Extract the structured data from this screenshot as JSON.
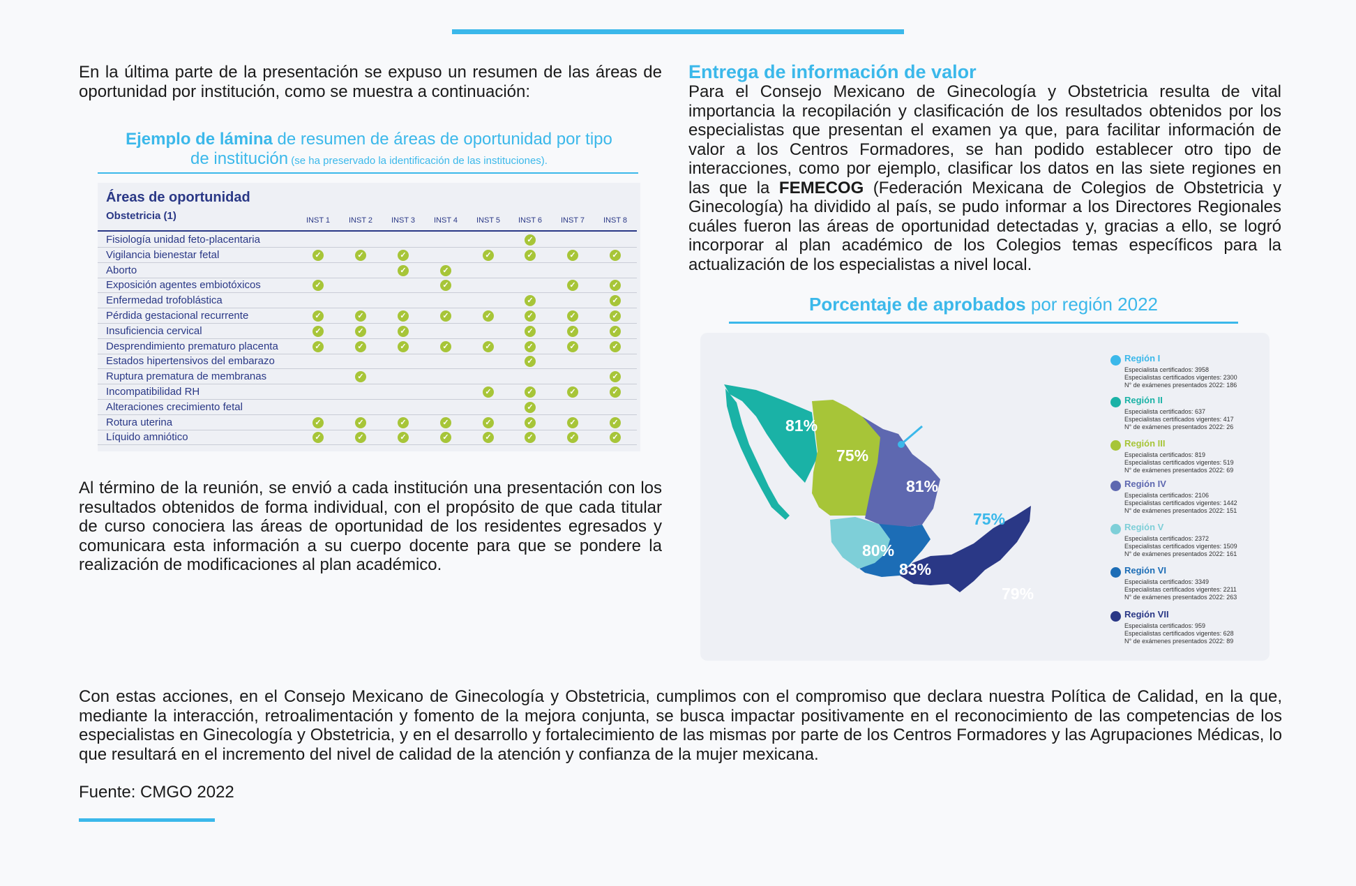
{
  "intro": {
    "text": "En la última parte de la presentación se expuso un resumen de las áreas de oportunidad por institución, como se muestra a continuación:"
  },
  "table_caption": {
    "bold": "Ejemplo de lámina",
    "rest_1": " de resumen de áreas de oportunidad por tipo",
    "line2": "de institución",
    "small": " (se ha preservado la identificación de las instituciones)."
  },
  "table": {
    "title": "Áreas de oportunidad",
    "subtitle": "Obstetricia (1)",
    "columns": [
      "INST 1",
      "INST 2",
      "INST 3",
      "INST 4",
      "INST 5",
      "INST 6",
      "INST 7",
      "INST 8"
    ],
    "rows": [
      {
        "label": "Fisiología unidad feto-placentaria",
        "marks": [
          0,
          0,
          0,
          0,
          0,
          1,
          0,
          0
        ]
      },
      {
        "label": "Vigilancia bienestar fetal",
        "marks": [
          1,
          1,
          1,
          0,
          1,
          1,
          1,
          1
        ]
      },
      {
        "label": "Aborto",
        "marks": [
          0,
          0,
          1,
          1,
          0,
          0,
          0,
          0
        ]
      },
      {
        "label": "Exposición agentes embiotóxicos",
        "marks": [
          1,
          0,
          0,
          1,
          0,
          0,
          1,
          1
        ]
      },
      {
        "label": "Enfermedad trofoblástica",
        "marks": [
          0,
          0,
          0,
          0,
          0,
          1,
          0,
          1
        ]
      },
      {
        "label": "Pérdida gestacional recurrente",
        "marks": [
          1,
          1,
          1,
          1,
          1,
          1,
          1,
          1
        ]
      },
      {
        "label": "Insuficiencia cervical",
        "marks": [
          1,
          1,
          1,
          0,
          0,
          1,
          1,
          1
        ]
      },
      {
        "label": "Desprendimiento prematuro placenta",
        "marks": [
          1,
          1,
          1,
          1,
          1,
          1,
          1,
          1
        ]
      },
      {
        "label": "Estados hipertensivos del embarazo",
        "marks": [
          0,
          0,
          0,
          0,
          0,
          1,
          0,
          0
        ]
      },
      {
        "label": "Ruptura prematura de membranas",
        "marks": [
          0,
          1,
          0,
          0,
          0,
          0,
          0,
          1
        ]
      },
      {
        "label": "Incompatibilidad RH",
        "marks": [
          0,
          0,
          0,
          0,
          1,
          1,
          1,
          1
        ]
      },
      {
        "label": "Alteraciones crecimiento fetal",
        "marks": [
          0,
          0,
          0,
          0,
          0,
          1,
          0,
          0
        ]
      },
      {
        "label": "Rotura uterina",
        "marks": [
          1,
          1,
          1,
          1,
          1,
          1,
          1,
          1
        ]
      },
      {
        "label": "Líquido amniótico",
        "marks": [
          1,
          1,
          1,
          1,
          1,
          1,
          1,
          1
        ]
      }
    ]
  },
  "closing_left": {
    "text": "Al término de la reunión, se envió a cada institución una presentación con los resultados obtenidos de forma individual, con el propósito de que cada titular de curso conociera las áreas de oportunidad de los residentes egresados y comunicara esta información a su cuerpo docente para que se pondere la realización de modificaciones al plan académico."
  },
  "section": {
    "heading": "Entrega de información de valor",
    "text_before": "Para el Consejo Mexicano de Ginecología y Obstetricia resulta de vital importancia la recopilación y clasificación de los resultados obtenidos por los especialistas que presentan el examen ya que, para facilitar información de valor a los Centros Formadores, se han podido establecer otro tipo de interacciones, como por ejemplo, clasificar los datos en las siete regiones en las que la ",
    "text_bold": "FEMECOG",
    "text_after": " (Federación Mexicana de Colegios de Obstetricia y Ginecología) ha dividido al país, se pudo informar a los Directores Regionales  cuáles fueron las áreas de oportunidad detectadas y, gracias a ello, se logró incorporar al plan académico de los Colegios temas específicos para la actualización de los especialistas a nivel local."
  },
  "map_caption": {
    "bold": "Porcentaje de aprobados",
    "rest": " por región 2022"
  },
  "regions": [
    {
      "name": "Región I",
      "color": "#3bb8ea",
      "l1": "Especialista certificados: 3958",
      "l2": "Especialistas certificados vigentes: 2300",
      "l3": "N° de exámenes presentados 2022: 186",
      "pct": "81%"
    },
    {
      "name": "Región II",
      "color": "#1ab2a6",
      "l1": "Especialista certificados: 637",
      "l2": "Especialistas certificados vigentes: 417",
      "l3": "N° de exámenes presentados 2022: 26",
      "pct": "75%"
    },
    {
      "name": "Región III",
      "color": "#a7c538",
      "l1": "Especialista certificados: 819",
      "l2": "Especialistas certificados vigentes: 519",
      "l3": "N° de exámenes presentados 2022: 69",
      "pct": "81%"
    },
    {
      "name": "Región IV",
      "color": "#5e68b0",
      "l1": "Especialista certificados: 2106",
      "l2": "Especialistas certificados vigentes: 1442",
      "l3": "N° de exámenes presentados 2022: 151",
      "pct": "75%"
    },
    {
      "name": "Región V",
      "color": "#7ecfd8",
      "l1": "Especialista certificados: 2372",
      "l2": "Especialistas certificados vigentes: 1509",
      "l3": "N° de exámenes presentados 2022: 161",
      "pct": "80%"
    },
    {
      "name": "Región VI",
      "color": "#1c6db6",
      "l1": "Especialista certificados: 3349",
      "l2": "Especialistas certificados vigentes: 2211",
      "l3": "N° de exámenes presentados 2022: 263",
      "pct": "83%"
    },
    {
      "name": "Región VII",
      "color": "#2a3886",
      "l1": "Especialista certificados: 959",
      "l2": "Especialistas certificados vigentes: 628",
      "l3": "N° de exámenes presentados 2022: 89",
      "pct": "79%"
    }
  ],
  "bottom": {
    "text": "Con estas acciones, en el Consejo Mexicano de Ginecología y Obstetricia, cumplimos con el compromiso que declara nuestra Política de Calidad, en la que, mediante la interacción, retroalimentación y fomento de la mejora conjunta, se busca impactar positivamente en el reconocimiento de las competencias de los especialistas en Ginecología y Obstetricia, y en el desarrollo y fortalecimiento de las mismas por parte de los Centros Formadores y las Agrupaciones Médicas, lo que resultará en el incremento del nivel de calidad de la atención y confianza de la mujer mexicana.",
    "source": "Fuente: CMGO 2022"
  }
}
